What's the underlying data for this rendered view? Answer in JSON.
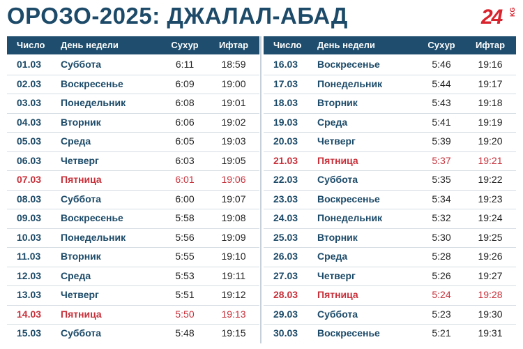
{
  "header": {
    "title": "ОРОЗО-2025: ДЖАЛАЛ-АБАД",
    "logo": "24",
    "logo_sub": "KG"
  },
  "columns": [
    "Число",
    "День недели",
    "Сухур",
    "Ифтар"
  ],
  "highlight_color": "#c8303a",
  "tables": [
    {
      "rows": [
        {
          "date": "01.03",
          "day": "Суббота",
          "suhur": "6:11",
          "iftar": "18:59"
        },
        {
          "date": "02.03",
          "day": "Воскресенье",
          "suhur": "6:09",
          "iftar": "19:00"
        },
        {
          "date": "03.03",
          "day": "Понедельник",
          "suhur": "6:08",
          "iftar": "19:01"
        },
        {
          "date": "04.03",
          "day": "Вторник",
          "suhur": "6:06",
          "iftar": "19:02"
        },
        {
          "date": "05.03",
          "day": "Среда",
          "suhur": "6:05",
          "iftar": "19:03"
        },
        {
          "date": "06.03",
          "day": "Четверг",
          "suhur": "6:03",
          "iftar": "19:05"
        },
        {
          "date": "07.03",
          "day": "Пятница",
          "suhur": "6:01",
          "iftar": "19:06",
          "highlight": true
        },
        {
          "date": "08.03",
          "day": "Суббота",
          "suhur": "6:00",
          "iftar": "19:07"
        },
        {
          "date": "09.03",
          "day": "Воскресенье",
          "suhur": "5:58",
          "iftar": "19:08"
        },
        {
          "date": "10.03",
          "day": "Понедельник",
          "suhur": "5:56",
          "iftar": "19:09"
        },
        {
          "date": "11.03",
          "day": "Вторник",
          "suhur": "5:55",
          "iftar": "19:10"
        },
        {
          "date": "12.03",
          "day": "Среда",
          "suhur": "5:53",
          "iftar": "19:11"
        },
        {
          "date": "13.03",
          "day": "Четверг",
          "suhur": "5:51",
          "iftar": "19:12"
        },
        {
          "date": "14.03",
          "day": "Пятница",
          "suhur": "5:50",
          "iftar": "19:13",
          "highlight": true
        },
        {
          "date": "15.03",
          "day": "Суббота",
          "suhur": "5:48",
          "iftar": "19:15"
        }
      ]
    },
    {
      "rows": [
        {
          "date": "16.03",
          "day": "Воскресенье",
          "suhur": "5:46",
          "iftar": "19:16"
        },
        {
          "date": "17.03",
          "day": "Понедельник",
          "suhur": "5:44",
          "iftar": "19:17"
        },
        {
          "date": "18.03",
          "day": "Вторник",
          "suhur": "5:43",
          "iftar": "19:18"
        },
        {
          "date": "19.03",
          "day": "Среда",
          "suhur": "5:41",
          "iftar": "19:19"
        },
        {
          "date": "20.03",
          "day": "Четверг",
          "suhur": "5:39",
          "iftar": "19:20"
        },
        {
          "date": "21.03",
          "day": "Пятница",
          "suhur": "5:37",
          "iftar": "19:21",
          "highlight": true
        },
        {
          "date": "22.03",
          "day": "Суббота",
          "suhur": "5:35",
          "iftar": "19:22"
        },
        {
          "date": "23.03",
          "day": "Воскресенье",
          "suhur": "5:34",
          "iftar": "19:23"
        },
        {
          "date": "24.03",
          "day": "Понедельник",
          "suhur": "5:32",
          "iftar": "19:24"
        },
        {
          "date": "25.03",
          "day": "Вторник",
          "suhur": "5:30",
          "iftar": "19:25"
        },
        {
          "date": "26.03",
          "day": "Среда",
          "suhur": "5:28",
          "iftar": "19:26"
        },
        {
          "date": "27.03",
          "day": "Четверг",
          "suhur": "5:26",
          "iftar": "19:27"
        },
        {
          "date": "28.03",
          "day": "Пятница",
          "suhur": "5:24",
          "iftar": "19:28",
          "highlight": true
        },
        {
          "date": "29.03",
          "day": "Суббота",
          "suhur": "5:23",
          "iftar": "19:30"
        },
        {
          "date": "30.03",
          "day": "Воскресенье",
          "suhur": "5:21",
          "iftar": "19:31"
        }
      ]
    }
  ]
}
